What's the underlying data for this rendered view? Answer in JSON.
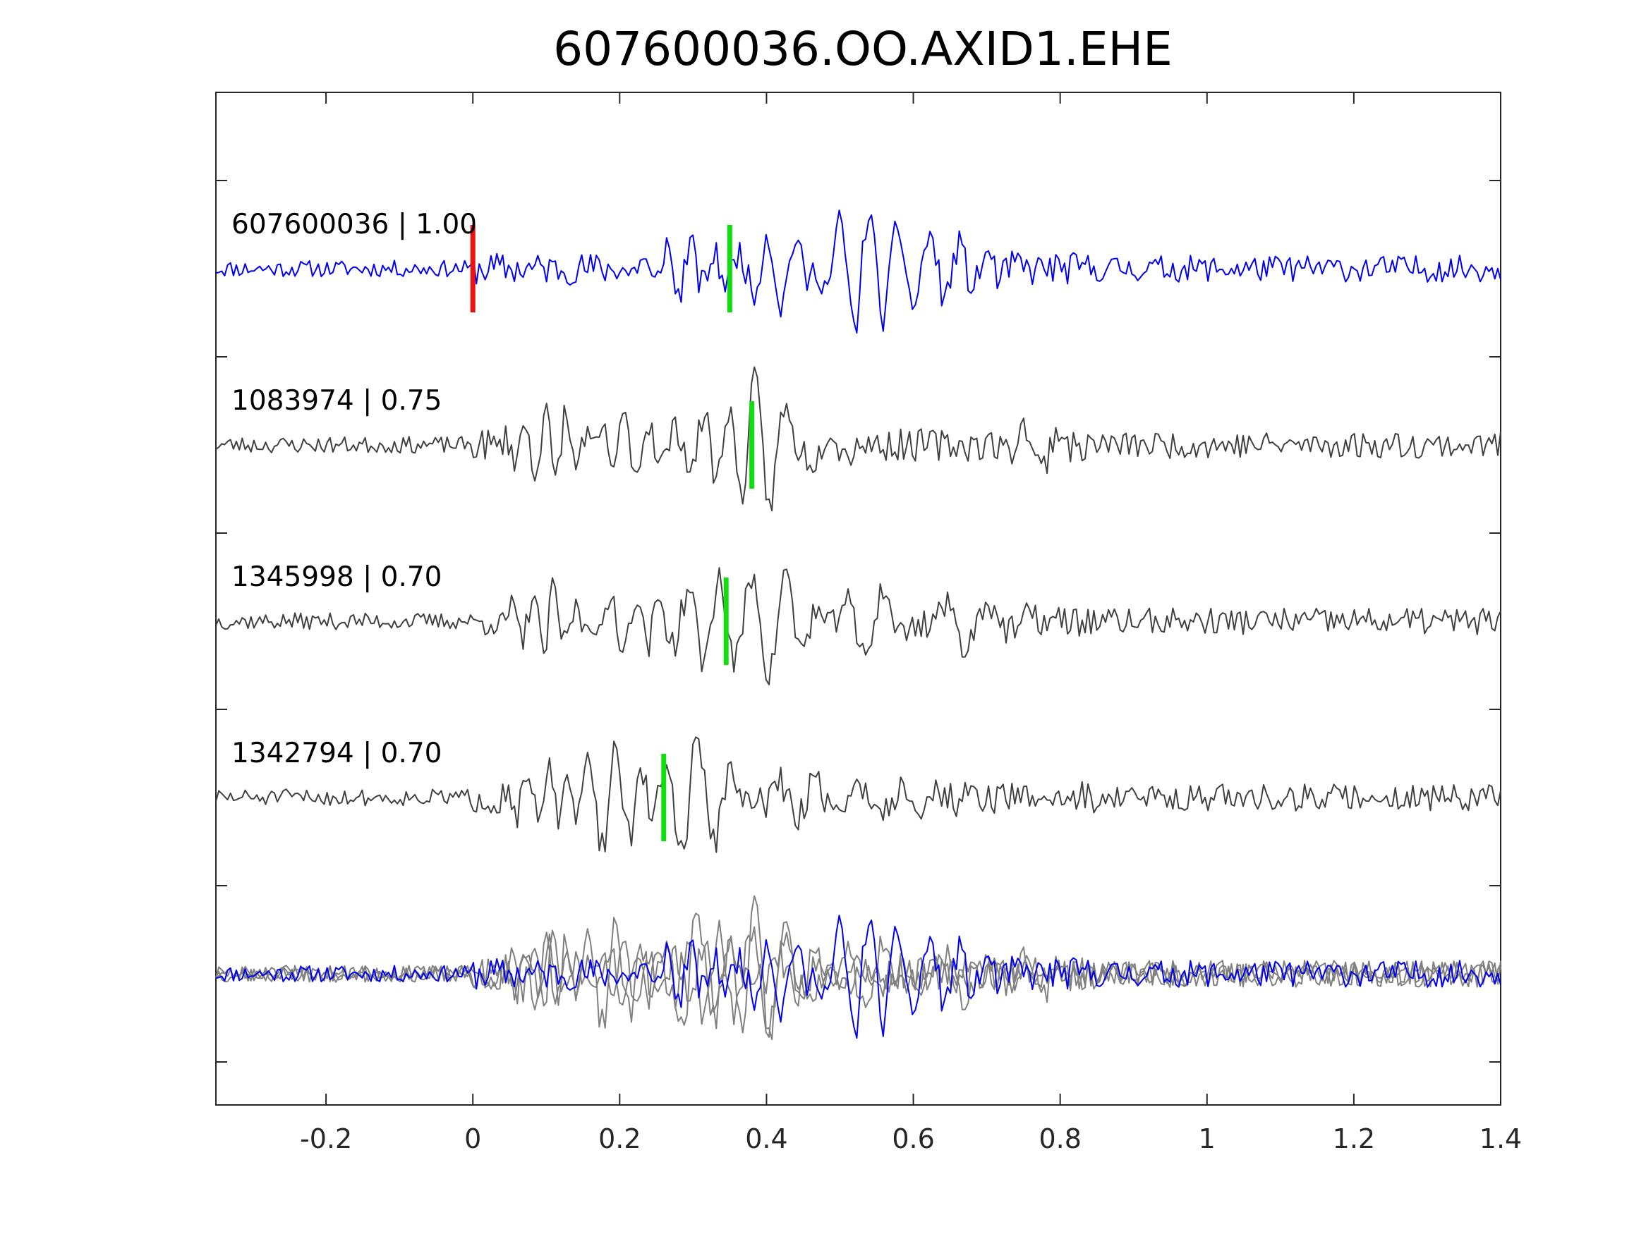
{
  "chart_data": {
    "type": "line",
    "title": "607600036.OO.AXID1.EHE",
    "xlabel": "",
    "ylabel": "",
    "xlim": [
      -0.35,
      1.4
    ],
    "xticks": [
      -0.2,
      0,
      0.2,
      0.4,
      0.6,
      0.8,
      1,
      1.2,
      1.4
    ],
    "xtick_labels": [
      "-0.2",
      "0",
      "0.2",
      "0.4",
      "0.6",
      "0.8",
      "1",
      "1.2",
      "1.4"
    ],
    "grid": false,
    "legend": "none",
    "colors": {
      "template": "#0000ee",
      "match": "#404040",
      "overlay": "#808080",
      "red_pick": "#ee1111",
      "green_pick": "#11dd11",
      "axes": "#262626"
    },
    "traces": [
      {
        "label": "607600036 | 1.00",
        "id": "607600036",
        "cc": 1.0,
        "color": "#0000ee",
        "seed": 11,
        "onset": 0.0,
        "pick_red": 0.0,
        "pick_green": 0.35,
        "pulses": [
          [
            0.28,
            1.0,
            0.05,
            30
          ],
          [
            0.42,
            1.4,
            0.06,
            26
          ],
          [
            0.52,
            2.3,
            0.05,
            24
          ],
          [
            0.6,
            1.2,
            0.06,
            22
          ],
          [
            0.68,
            0.7,
            0.05,
            25
          ]
        ]
      },
      {
        "label": "1083974 | 0.75",
        "id": "1083974",
        "cc": 0.75,
        "color": "#404040",
        "seed": 23,
        "onset": 0.0,
        "pick_green": 0.38,
        "pulses": [
          [
            0.11,
            1.3,
            0.05,
            36
          ],
          [
            0.22,
            1.0,
            0.05,
            30
          ],
          [
            0.33,
            1.4,
            0.05,
            28
          ],
          [
            0.4,
            2.2,
            0.05,
            24
          ],
          [
            0.46,
            1.0,
            0.05,
            22
          ],
          [
            0.77,
            0.9,
            0.04,
            20
          ]
        ]
      },
      {
        "label": "1345998 | 0.70",
        "id": "1345998",
        "cc": 0.7,
        "color": "#404040",
        "seed": 37,
        "onset": 0.01,
        "pick_green": 0.345,
        "pulses": [
          [
            0.1,
            1.2,
            0.05,
            34
          ],
          [
            0.21,
            1.1,
            0.05,
            30
          ],
          [
            0.32,
            1.5,
            0.05,
            24
          ],
          [
            0.41,
            2.0,
            0.05,
            22
          ],
          [
            0.54,
            1.3,
            0.05,
            18
          ],
          [
            0.68,
            0.9,
            0.06,
            16
          ]
        ]
      },
      {
        "label": "1342794 | 0.70",
        "id": "1342794",
        "cc": 0.7,
        "color": "#404040",
        "seed": 51,
        "onset": 0.0,
        "pick_green": 0.26,
        "pulses": [
          [
            0.1,
            1.0,
            0.05,
            34
          ],
          [
            0.19,
            1.9,
            0.05,
            26
          ],
          [
            0.3,
            2.4,
            0.05,
            22
          ],
          [
            0.46,
            0.9,
            0.06,
            20
          ],
          [
            0.58,
            0.6,
            0.06,
            20
          ]
        ]
      }
    ]
  }
}
